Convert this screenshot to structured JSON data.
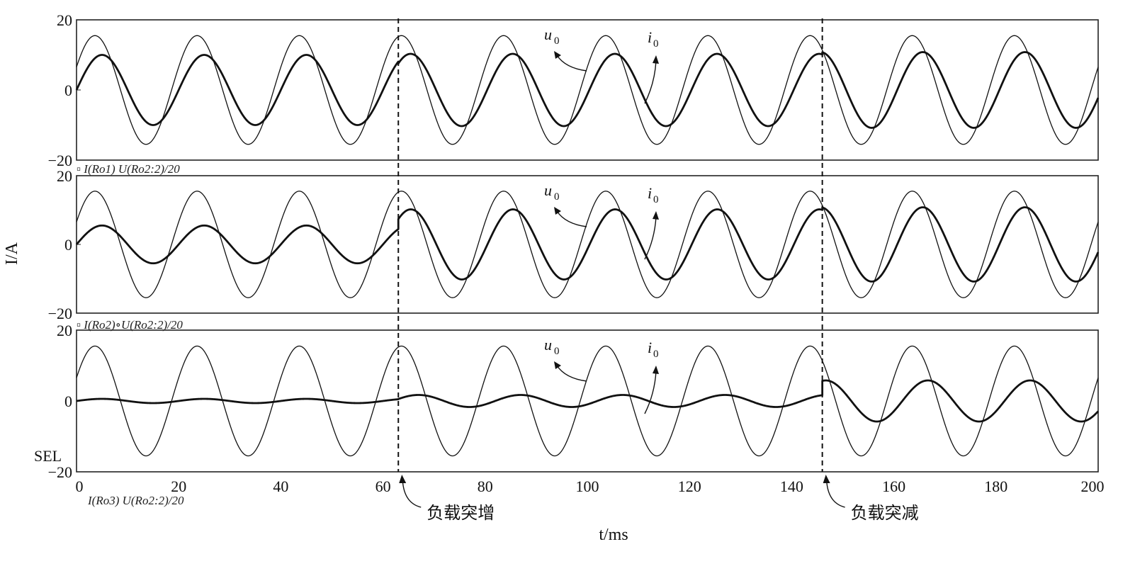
{
  "chart_data": {
    "type": "line",
    "ylabel": "I/A",
    "xlabel": "t/ms",
    "xlim": [
      0,
      200
    ],
    "x_ticks": [
      "0",
      "20",
      "40",
      "60",
      "80",
      "100",
      "120",
      "140",
      "160",
      "180",
      "200"
    ],
    "x_tick_values": [
      0,
      20,
      40,
      60,
      80,
      100,
      120,
      140,
      160,
      180,
      200
    ],
    "period_ms": 20,
    "events": [
      {
        "t": 63,
        "label": "负载突增"
      },
      {
        "t": 146,
        "label": "负载突减"
      }
    ],
    "side_label": "SEL",
    "panels": [
      {
        "ylim": [
          -20,
          20
        ],
        "y_ticks": [
          "20",
          "0",
          "−20"
        ],
        "legend": "I(Ro1)  U(Ro2:2)/20",
        "series": [
          {
            "name": "u0",
            "segments": [
              {
                "t0": 0,
                "t1": 200,
                "amp": 15.5,
                "phase_deg": 25
              }
            ]
          },
          {
            "name": "i0",
            "segments": [
              {
                "t0": 0,
                "t1": 63,
                "amp": 10,
                "phase_deg": 0
              },
              {
                "t0": 63,
                "t1": 146,
                "amp": 10.3,
                "phase_deg": -7
              },
              {
                "t0": 146,
                "t1": 200,
                "amp": 10.8,
                "phase_deg": -12
              }
            ]
          }
        ]
      },
      {
        "ylim": [
          -20,
          20
        ],
        "y_ticks": [
          "20",
          "0",
          "−20"
        ],
        "legend": "I(Ro2)∘U(Ro2:2)/20",
        "series": [
          {
            "name": "u0",
            "segments": [
              {
                "t0": 0,
                "t1": 200,
                "amp": 15.5,
                "phase_deg": 25
              }
            ]
          },
          {
            "name": "i0",
            "segments": [
              {
                "t0": 0,
                "t1": 63,
                "amp": 5.5,
                "phase_deg": 0
              },
              {
                "t0": 63,
                "t1": 146,
                "amp": 10.2,
                "phase_deg": -8
              },
              {
                "t0": 146,
                "t1": 200,
                "amp": 10.8,
                "phase_deg": -12
              }
            ]
          }
        ]
      },
      {
        "ylim": [
          -20,
          20
        ],
        "y_ticks": [
          "20",
          "0",
          "−20"
        ],
        "legend": "I(Ro3)  U(Ro2:2)/20",
        "series": [
          {
            "name": "u0",
            "segments": [
              {
                "t0": 0,
                "t1": 200,
                "amp": 15.5,
                "phase_deg": 25
              }
            ]
          },
          {
            "name": "i0",
            "segments": [
              {
                "t0": 0,
                "t1": 63,
                "amp": 0.6,
                "phase_deg": 0
              },
              {
                "t0": 63,
                "t1": 146,
                "amp": 1.7,
                "phase_deg": -35
              },
              {
                "t0": 146,
                "t1": 200,
                "amp": 5.8,
                "phase_deg": -30
              }
            ]
          }
        ]
      }
    ],
    "series_labels": {
      "u": "u",
      "i": "i",
      "sub": "0"
    }
  }
}
